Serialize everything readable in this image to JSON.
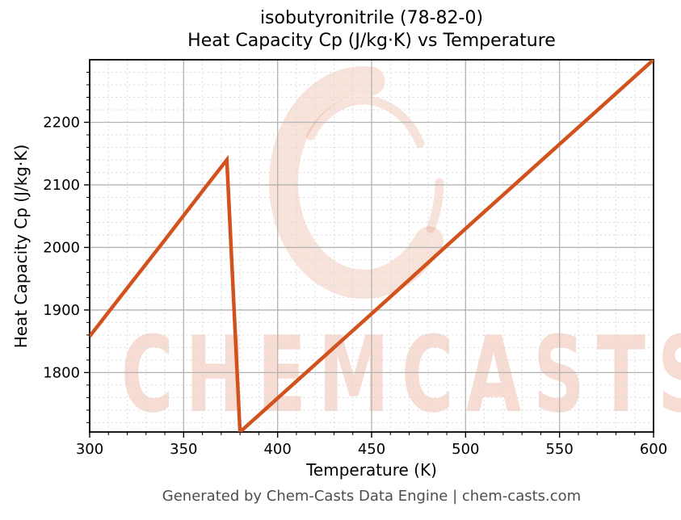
{
  "figure": {
    "footer": "Generated by Chem-Casts Data Engine | chem-casts.com",
    "watermark_text": "CHEMCASTS"
  },
  "colors": {
    "line": "#d2521e",
    "watermark_stroke": "rgba(212,82,30,0.16)",
    "watermark_text": "rgba(212,82,30,0.20)",
    "grid_major": "#b3b3b3",
    "grid_minor": "#d9d9d9",
    "axis": "#000000",
    "footer_text": "#4d4d4d"
  },
  "chart_data": {
    "type": "line",
    "title": "isobutyronitrile (78-82-0)",
    "subtitle": "Heat Capacity Cp (J/kg·K) vs Temperature",
    "xlabel": "Temperature (K)",
    "ylabel": "Heat Capacity Cp (J/kg·K)",
    "xlim": [
      300,
      600
    ],
    "ylim": [
      1705,
      2300
    ],
    "x_ticks": [
      300,
      350,
      400,
      450,
      500,
      550,
      600
    ],
    "y_ticks": [
      1800,
      1900,
      2000,
      2100,
      2200
    ],
    "x_minor_step": 10,
    "y_minor_step": 20,
    "grid": {
      "major": "solid",
      "minor": "dashed"
    },
    "legend": false,
    "series": [
      {
        "name": "Heat Capacity Cp (J/kg·K)",
        "color": "#d2521e",
        "x": [
          300,
          320,
          340,
          360,
          373,
          380,
          420,
          460,
          500,
          550,
          600
        ],
        "y": [
          1858,
          1935,
          2012,
          2090,
          2140,
          1705,
          1813,
          1921,
          2030,
          2165,
          2300
        ]
      }
    ]
  }
}
